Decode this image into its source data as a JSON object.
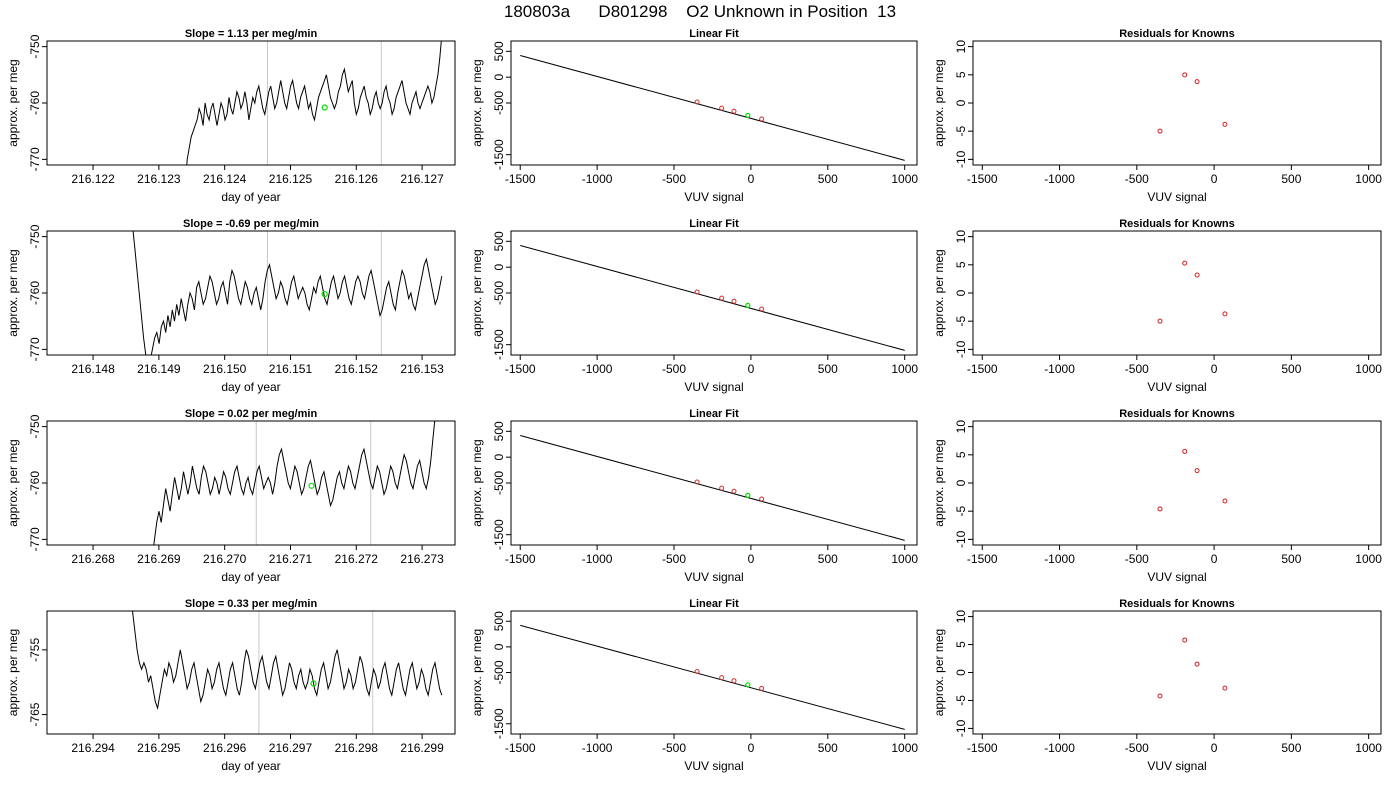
{
  "page": {
    "title": "180803a      D801298    O2 Unknown in Position  13"
  },
  "colors": {
    "trace": "#000000",
    "window_lines": "#c8c8c8",
    "unknown_point": "#00dd00",
    "fit_points": "#cc3333",
    "residual_points": "#cc2222"
  },
  "chart_data": [
    {
      "type": "line",
      "panel": "timeseries",
      "row": 0,
      "title": "Slope =  1.13  per meg/min",
      "xlabel": "day of year",
      "ylabel": "approx. per meg",
      "xlim": [
        216.1213,
        216.1275
      ],
      "ylim": [
        -771,
        -749
      ],
      "xticks": [
        "216.122",
        "216.123",
        "216.124",
        "216.125",
        "216.126",
        "216.127"
      ],
      "yticks": [
        "-770",
        "-760",
        "-750"
      ],
      "window_lines": [
        216.12465,
        216.12638
      ],
      "unknown_point": {
        "x": 216.12552,
        "y": -760.8
      },
      "trace_start": 216.1234,
      "trace_end": 216.1273,
      "trace": [
        -775,
        -770,
        -768,
        -766,
        -765,
        -764,
        -763,
        -761,
        -762,
        -764,
        -760,
        -762,
        -763,
        -761,
        -760,
        -762,
        -764,
        -762,
        -760,
        -761,
        -763,
        -762,
        -759,
        -761,
        -762,
        -760,
        -758,
        -759,
        -761,
        -760,
        -758,
        -760,
        -763,
        -761,
        -759,
        -760,
        -758,
        -757,
        -759,
        -761,
        -762,
        -760,
        -758,
        -757,
        -759,
        -761,
        -760,
        -758,
        -756,
        -758,
        -760,
        -761,
        -759,
        -757,
        -756,
        -758,
        -760,
        -761,
        -759,
        -758,
        -757,
        -759,
        -761,
        -760,
        -762,
        -763,
        -761,
        -759,
        -758,
        -757,
        -756,
        -755,
        -757,
        -759,
        -760,
        -761,
        -760,
        -758,
        -757,
        -755,
        -754,
        -756,
        -758,
        -757,
        -756,
        -760,
        -762,
        -761,
        -759,
        -758,
        -757,
        -759,
        -760,
        -762,
        -761,
        -759,
        -758,
        -760,
        -761,
        -760,
        -758,
        -757,
        -759,
        -760,
        -762,
        -761,
        -759,
        -758,
        -757,
        -756,
        -758,
        -760,
        -761,
        -762,
        -760,
        -759,
        -758,
        -760,
        -761,
        -760,
        -759,
        -758,
        -757,
        -758,
        -760,
        -759,
        -757,
        -755,
        -752,
        -748
      ]
    },
    {
      "type": "scatter",
      "panel": "linear-fit",
      "row": 0,
      "title": "Linear Fit",
      "xlabel": "VUV signal",
      "ylabel": "approx. per meg",
      "xlim": [
        -1560,
        1080
      ],
      "ylim": [
        -1700,
        700
      ],
      "xticks": [
        -1500,
        -1000,
        -500,
        0,
        500,
        1000
      ],
      "yticks": [
        "-1500",
        "-500",
        "0",
        "500"
      ],
      "fit_line": [
        [
          -1500,
          420
        ],
        [
          1000,
          -1610
        ]
      ],
      "knowns": [
        {
          "x": -350,
          "y": -480
        },
        {
          "x": -190,
          "y": -600
        },
        {
          "x": -110,
          "y": -660
        },
        {
          "x": 70,
          "y": -810
        }
      ],
      "unknown": {
        "x": -20,
        "y": -740
      }
    },
    {
      "type": "scatter",
      "panel": "residuals",
      "row": 0,
      "title": "Residuals for Knowns",
      "xlabel": "VUV signal",
      "ylabel": "approx. per meg",
      "xlim": [
        -1560,
        1080
      ],
      "ylim": [
        -11,
        11
      ],
      "xticks": [
        -1500,
        -1000,
        -500,
        0,
        500,
        1000
      ],
      "yticks": [
        -10,
        -5,
        0,
        5,
        10
      ],
      "points": [
        {
          "x": -350,
          "y": -5
        },
        {
          "x": -190,
          "y": 5
        },
        {
          "x": -110,
          "y": 3.8
        },
        {
          "x": 70,
          "y": -3.8
        }
      ]
    },
    {
      "type": "line",
      "panel": "timeseries",
      "row": 1,
      "title": "Slope =  -0.69  per meg/min",
      "xlabel": "day of year",
      "ylabel": "approx. per meg",
      "xlim": [
        216.1473,
        216.1535
      ],
      "ylim": [
        -771,
        -749
      ],
      "xticks": [
        "216.148",
        "216.149",
        "216.150",
        "216.151",
        "216.152",
        "216.153"
      ],
      "yticks": [
        "-770",
        "-760",
        "-750"
      ],
      "window_lines": [
        216.15065,
        216.15238
      ],
      "unknown_point": {
        "x": 216.15152,
        "y": -760.2
      },
      "trace_start": 216.1486,
      "trace_end": 216.1533,
      "trace": [
        -748,
        -752,
        -756,
        -760,
        -764,
        -768,
        -771,
        -774,
        -772,
        -770,
        -768,
        -767,
        -769,
        -766,
        -765,
        -767,
        -764,
        -766,
        -763,
        -765,
        -762,
        -764,
        -761,
        -763,
        -765,
        -762,
        -760,
        -761,
        -763,
        -759,
        -758,
        -760,
        -762,
        -761,
        -759,
        -757,
        -758,
        -760,
        -762,
        -761,
        -759,
        -758,
        -760,
        -762,
        -758,
        -756,
        -757,
        -759,
        -761,
        -762,
        -760,
        -758,
        -759,
        -761,
        -762,
        -760,
        -759,
        -761,
        -763,
        -761,
        -758,
        -756,
        -755,
        -757,
        -759,
        -761,
        -760,
        -758,
        -759,
        -761,
        -762,
        -760,
        -758,
        -757,
        -759,
        -761,
        -760,
        -759,
        -760,
        -762,
        -763,
        -761,
        -759,
        -760,
        -758,
        -757,
        -759,
        -761,
        -762,
        -760,
        -758,
        -757,
        -759,
        -761,
        -760,
        -758,
        -757,
        -759,
        -761,
        -762,
        -760,
        -758,
        -757,
        -758,
        -760,
        -761,
        -759,
        -757,
        -756,
        -758,
        -760,
        -762,
        -764,
        -763,
        -761,
        -759,
        -758,
        -760,
        -762,
        -763,
        -760,
        -758,
        -756,
        -757,
        -759,
        -761,
        -760,
        -762,
        -763,
        -761,
        -759,
        -757,
        -755,
        -754,
        -756,
        -758,
        -760,
        -762,
        -761,
        -759,
        -757
      ]
    },
    {
      "type": "scatter",
      "panel": "linear-fit",
      "row": 1,
      "title": "Linear Fit",
      "xlabel": "VUV signal",
      "ylabel": "approx. per meg",
      "xlim": [
        -1560,
        1080
      ],
      "ylim": [
        -1700,
        700
      ],
      "xticks": [
        -1500,
        -1000,
        -500,
        0,
        500,
        1000
      ],
      "yticks": [
        "-1500",
        "-500",
        "0",
        "500"
      ],
      "fit_line": [
        [
          -1500,
          420
        ],
        [
          1000,
          -1610
        ]
      ],
      "knowns": [
        {
          "x": -350,
          "y": -480
        },
        {
          "x": -190,
          "y": -600
        },
        {
          "x": -110,
          "y": -660
        },
        {
          "x": 70,
          "y": -810
        }
      ],
      "unknown": {
        "x": -20,
        "y": -740
      }
    },
    {
      "type": "scatter",
      "panel": "residuals",
      "row": 1,
      "title": "Residuals for Knowns",
      "xlabel": "VUV signal",
      "ylabel": "approx. per meg",
      "xlim": [
        -1560,
        1080
      ],
      "ylim": [
        -11,
        11
      ],
      "xticks": [
        -1500,
        -1000,
        -500,
        0,
        500,
        1000
      ],
      "yticks": [
        -10,
        -5,
        0,
        5,
        10
      ],
      "points": [
        {
          "x": -350,
          "y": -5
        },
        {
          "x": -190,
          "y": 5.3
        },
        {
          "x": -110,
          "y": 3.2
        },
        {
          "x": 70,
          "y": -3.7
        }
      ]
    },
    {
      "type": "line",
      "panel": "timeseries",
      "row": 2,
      "title": "Slope =  0.02  per meg/min",
      "xlabel": "day of year",
      "ylabel": "approx. per meg",
      "xlim": [
        216.2673,
        216.2735
      ],
      "ylim": [
        -771,
        -749
      ],
      "xticks": [
        "216.268",
        "216.269",
        "216.270",
        "216.271",
        "216.272",
        "216.273"
      ],
      "yticks": [
        "-770",
        "-760",
        "-750"
      ],
      "window_lines": [
        216.27048,
        216.27222
      ],
      "unknown_point": {
        "x": 216.27132,
        "y": -760.5
      },
      "trace_start": 216.2689,
      "trace_end": 216.2732,
      "trace": [
        -773,
        -770,
        -767,
        -765,
        -767,
        -764,
        -761,
        -763,
        -765,
        -762,
        -759,
        -761,
        -763,
        -761,
        -758,
        -760,
        -762,
        -760,
        -757,
        -759,
        -761,
        -762,
        -759,
        -757,
        -758,
        -760,
        -762,
        -761,
        -759,
        -760,
        -762,
        -760,
        -758,
        -759,
        -761,
        -762,
        -760,
        -758,
        -757,
        -759,
        -761,
        -762,
        -760,
        -759,
        -761,
        -762,
        -760,
        -758,
        -757,
        -759,
        -761,
        -760,
        -759,
        -760,
        -762,
        -760,
        -757,
        -755,
        -754,
        -756,
        -758,
        -760,
        -761,
        -759,
        -757,
        -758,
        -760,
        -762,
        -761,
        -759,
        -757,
        -756,
        -758,
        -760,
        -762,
        -761,
        -759,
        -758,
        -760,
        -762,
        -764,
        -763,
        -761,
        -759,
        -758,
        -760,
        -761,
        -759,
        -757,
        -758,
        -760,
        -761,
        -759,
        -757,
        -755,
        -754,
        -756,
        -758,
        -760,
        -761,
        -759,
        -757,
        -758,
        -760,
        -762,
        -761,
        -759,
        -757,
        -758,
        -760,
        -761,
        -759,
        -757,
        -755,
        -756,
        -758,
        -760,
        -761,
        -759,
        -757,
        -756,
        -758,
        -760,
        -761,
        -759,
        -756,
        -752,
        -748
      ]
    },
    {
      "type": "scatter",
      "panel": "linear-fit",
      "row": 2,
      "title": "Linear Fit",
      "xlabel": "VUV signal",
      "ylabel": "approx. per meg",
      "xlim": [
        -1560,
        1080
      ],
      "ylim": [
        -1700,
        700
      ],
      "xticks": [
        -1500,
        -1000,
        -500,
        0,
        500,
        1000
      ],
      "yticks": [
        "-1500",
        "-500",
        "0",
        "500"
      ],
      "fit_line": [
        [
          -1500,
          420
        ],
        [
          1000,
          -1610
        ]
      ],
      "knowns": [
        {
          "x": -350,
          "y": -480
        },
        {
          "x": -190,
          "y": -600
        },
        {
          "x": -110,
          "y": -660
        },
        {
          "x": 70,
          "y": -810
        }
      ],
      "unknown": {
        "x": -20,
        "y": -740
      }
    },
    {
      "type": "scatter",
      "panel": "residuals",
      "row": 2,
      "title": "Residuals for Knowns",
      "xlabel": "VUV signal",
      "ylabel": "approx. per meg",
      "xlim": [
        -1560,
        1080
      ],
      "ylim": [
        -11,
        11
      ],
      "xticks": [
        -1500,
        -1000,
        -500,
        0,
        500,
        1000
      ],
      "yticks": [
        -10,
        -5,
        0,
        5,
        10
      ],
      "points": [
        {
          "x": -350,
          "y": -4.6
        },
        {
          "x": -190,
          "y": 5.6
        },
        {
          "x": -110,
          "y": 2.2
        },
        {
          "x": 70,
          "y": -3.2
        }
      ]
    },
    {
      "type": "line",
      "panel": "timeseries",
      "row": 3,
      "title": "Slope =  0.33  per meg/min",
      "xlabel": "day of year",
      "ylabel": "approx. per meg",
      "xlim": [
        216.2933,
        216.2995
      ],
      "ylim": [
        -768,
        -749
      ],
      "xticks": [
        "216.294",
        "216.295",
        "216.296",
        "216.297",
        "216.298",
        "216.299"
      ],
      "yticks": [
        "-765",
        "-755"
      ],
      "window_lines": [
        216.29652,
        216.29825
      ],
      "unknown_point": {
        "x": 216.29735,
        "y": -760.2
      },
      "trace_start": 216.2946,
      "trace_end": 216.2993,
      "trace": [
        -749,
        -752,
        -755,
        -757,
        -758,
        -757,
        -758,
        -760,
        -759,
        -761,
        -763,
        -764,
        -762,
        -760,
        -758,
        -759,
        -757,
        -758,
        -760,
        -759,
        -757,
        -755,
        -757,
        -759,
        -761,
        -760,
        -758,
        -757,
        -759,
        -761,
        -763,
        -762,
        -760,
        -758,
        -759,
        -761,
        -760,
        -758,
        -757,
        -759,
        -761,
        -762,
        -760,
        -758,
        -757,
        -759,
        -761,
        -762,
        -760,
        -757,
        -755,
        -756,
        -758,
        -760,
        -761,
        -759,
        -757,
        -756,
        -758,
        -760,
        -761,
        -759,
        -757,
        -756,
        -758,
        -760,
        -762,
        -761,
        -759,
        -757,
        -758,
        -760,
        -761,
        -759,
        -758,
        -760,
        -761,
        -760,
        -758,
        -759,
        -761,
        -762,
        -760,
        -758,
        -757,
        -759,
        -761,
        -760,
        -758,
        -756,
        -755,
        -757,
        -759,
        -761,
        -760,
        -758,
        -759,
        -761,
        -760,
        -758,
        -756,
        -757,
        -759,
        -761,
        -762,
        -760,
        -758,
        -759,
        -761,
        -760,
        -758,
        -757,
        -759,
        -761,
        -762,
        -760,
        -758,
        -757,
        -759,
        -761,
        -762,
        -760,
        -758,
        -757,
        -759,
        -761,
        -760,
        -758,
        -759,
        -761,
        -762,
        -760,
        -758,
        -757,
        -759,
        -761,
        -762
      ]
    },
    {
      "type": "scatter",
      "panel": "linear-fit",
      "row": 3,
      "title": "Linear Fit",
      "xlabel": "VUV signal",
      "ylabel": "approx. per meg",
      "xlim": [
        -1560,
        1080
      ],
      "ylim": [
        -1700,
        700
      ],
      "xticks": [
        -1500,
        -1000,
        -500,
        0,
        500,
        1000
      ],
      "yticks": [
        "-1500",
        "-500",
        "0",
        "500"
      ],
      "fit_line": [
        [
          -1500,
          420
        ],
        [
          1000,
          -1610
        ]
      ],
      "knowns": [
        {
          "x": -350,
          "y": -480
        },
        {
          "x": -190,
          "y": -600
        },
        {
          "x": -110,
          "y": -660
        },
        {
          "x": 70,
          "y": -810
        }
      ],
      "unknown": {
        "x": -20,
        "y": -740
      }
    },
    {
      "type": "scatter",
      "panel": "residuals",
      "row": 3,
      "title": "Residuals for Knowns",
      "xlabel": "VUV signal",
      "ylabel": "approx. per meg",
      "xlim": [
        -1560,
        1080
      ],
      "ylim": [
        -11,
        11
      ],
      "xticks": [
        -1500,
        -1000,
        -500,
        0,
        500,
        1000
      ],
      "yticks": [
        -10,
        -5,
        0,
        5,
        10
      ],
      "points": [
        {
          "x": -350,
          "y": -4.2
        },
        {
          "x": -190,
          "y": 5.8
        },
        {
          "x": -110,
          "y": 1.5
        },
        {
          "x": 70,
          "y": -2.8
        }
      ]
    }
  ]
}
